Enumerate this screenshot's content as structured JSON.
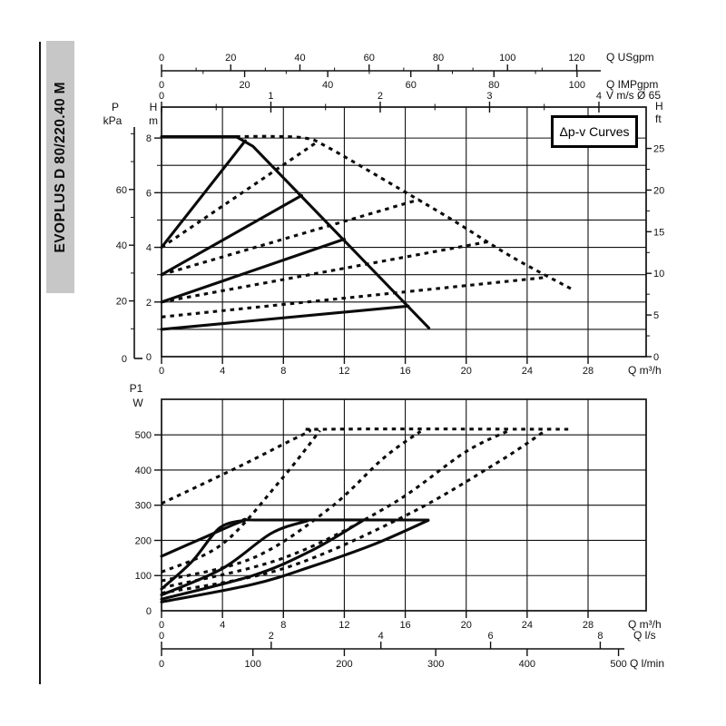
{
  "sidebar": {
    "model": "EVOPLUS D 80/220.40 M"
  },
  "annotation_box": {
    "label": "Δp-v Curves"
  },
  "colors": {
    "curve": "#0b0b0b",
    "grid": "#2e2e2e",
    "sidebar_bar": "#c7c7c7"
  },
  "chart_data": [
    {
      "id": "head_flow",
      "type": "line",
      "title": "Δp-v Curves",
      "legend_position": "top-right box",
      "grid": true,
      "axes": {
        "x_bottom": {
          "unit": "Q m³/h",
          "values": [
            0,
            4,
            8,
            12,
            16,
            20,
            24,
            28
          ],
          "range": [
            0,
            31.8
          ]
        },
        "y_left_primary": {
          "name_lines": [
            "H",
            "m"
          ],
          "labeled": [
            2,
            4,
            6,
            8
          ],
          "zero": 0,
          "minor": [
            1,
            3,
            5,
            7
          ],
          "range": [
            0,
            9.1
          ]
        },
        "y_left_secondary": {
          "name_lines": [
            "P",
            "kPa"
          ],
          "labeled": [
            20,
            40,
            60
          ],
          "zero": 0,
          "minor": [
            10,
            30,
            50,
            70,
            80
          ],
          "m_per_unit": 0.10197
        },
        "y_right": {
          "name_lines": [
            "H",
            "ft"
          ],
          "labeled": [
            5,
            10,
            15,
            20,
            25
          ],
          "zero": 0,
          "minor": [
            2.5,
            7.5,
            12.5,
            17.5,
            22.5
          ],
          "m_per_unit": 0.3048
        },
        "x_top": [
          {
            "unit": "Q USgpm",
            "values": [
              0,
              20,
              40,
              60,
              80,
              100,
              120
            ],
            "minor": [
              10,
              30,
              50,
              70,
              90,
              110
            ],
            "m3h_per_unit": 0.22712
          },
          {
            "unit": "Q IMPgpm",
            "values": [
              0,
              20,
              40,
              60,
              80,
              100
            ],
            "minor": [
              10,
              30,
              50,
              70,
              90
            ],
            "m3h_per_unit": 0.27276
          },
          {
            "unit": "V m/s Ø 65",
            "values": [
              0,
              1,
              2,
              3,
              4
            ],
            "minor": [
              0.5,
              1.5,
              2.5,
              3.5
            ],
            "m3h_per_unit": 7.178
          }
        ]
      },
      "series": [
        {
          "name": "max-speed-single",
          "style": "solid",
          "smooth": false,
          "points": [
            [
              0,
              8.05
            ],
            [
              4.9,
              8.05
            ],
            [
              6.0,
              7.7
            ],
            [
              17.55,
              1.05
            ]
          ]
        },
        {
          "name": "dpv-8m-single",
          "style": "solid",
          "smooth": false,
          "points": [
            [
              0,
              4.0
            ],
            [
              5.5,
              7.9
            ]
          ]
        },
        {
          "name": "dpv-6m-single",
          "style": "solid",
          "smooth": false,
          "points": [
            [
              0,
              3.0
            ],
            [
              9.2,
              5.9
            ]
          ]
        },
        {
          "name": "dpv-4m-single",
          "style": "solid",
          "smooth": false,
          "points": [
            [
              0,
              2.0
            ],
            [
              12.0,
              4.3
            ]
          ]
        },
        {
          "name": "dpv-2m-single",
          "style": "solid",
          "smooth": false,
          "points": [
            [
              0,
              1.0
            ],
            [
              16.2,
              1.85
            ]
          ]
        },
        {
          "name": "max-speed-parallel",
          "style": "dotted",
          "smooth": true,
          "points": [
            [
              4.9,
              8.05
            ],
            [
              7.2,
              8.06
            ],
            [
              9.4,
              8.0
            ],
            [
              10.8,
              7.7
            ],
            [
              15.6,
              6.15
            ],
            [
              19.1,
              5.0
            ],
            [
              23.0,
              3.65
            ],
            [
              27.0,
              2.45
            ]
          ]
        },
        {
          "name": "dpv-8m-parallel",
          "style": "dotted",
          "smooth": false,
          "points": [
            [
              0,
              4.0
            ],
            [
              10.2,
              7.85
            ]
          ]
        },
        {
          "name": "dpv-6m-parallel",
          "style": "dotted",
          "smooth": false,
          "points": [
            [
              0,
              3.0
            ],
            [
              16.9,
              5.75
            ]
          ]
        },
        {
          "name": "dpv-4m-parallel",
          "style": "dotted",
          "smooth": false,
          "points": [
            [
              0,
              2.0
            ],
            [
              21.4,
              4.2
            ]
          ]
        },
        {
          "name": "dpv-3m-parallel",
          "style": "dotted",
          "smooth": false,
          "points": [
            [
              0,
              1.45
            ],
            [
              25.2,
              2.9
            ]
          ]
        }
      ]
    },
    {
      "id": "power_flow",
      "type": "line",
      "grid": true,
      "axes": {
        "y_left": {
          "name_lines": [
            "P1",
            "W"
          ],
          "labeled": [
            100,
            200,
            300,
            400,
            500
          ],
          "zero": 0,
          "range": [
            0,
            600
          ]
        },
        "x_bottom": {
          "unit": "Q m³/h",
          "values": [
            0,
            4,
            8,
            12,
            16,
            20,
            24,
            28
          ],
          "range": [
            0,
            31.8
          ]
        },
        "x_extra": [
          {
            "unit": "Q l/s",
            "values": [
              0,
              2,
              4,
              6,
              8
            ],
            "m3h_per_unit": 3.6
          },
          {
            "unit": "Q l/min",
            "values": [
              0,
              100,
              200,
              300,
              400,
              500
            ],
            "m3h_per_unit": 0.06
          }
        ]
      },
      "series": [
        {
          "name": "power-max-single",
          "style": "solid",
          "smooth": true,
          "points": [
            [
              0,
              155
            ],
            [
              3,
              212
            ],
            [
              5.4,
              256
            ],
            [
              6.5,
              258
            ],
            [
              17.5,
              258
            ]
          ]
        },
        {
          "name": "power-8m-single",
          "style": "solid",
          "smooth": true,
          "points": [
            [
              0,
              62
            ],
            [
              2,
              140
            ],
            [
              3.8,
              235
            ],
            [
              5.4,
              257
            ]
          ]
        },
        {
          "name": "power-6m-single",
          "style": "solid",
          "smooth": true,
          "points": [
            [
              0,
              45
            ],
            [
              4,
              120
            ],
            [
              7.2,
              220
            ],
            [
              9.6,
              256
            ]
          ]
        },
        {
          "name": "power-4m-single",
          "style": "solid",
          "smooth": true,
          "points": [
            [
              0,
              33
            ],
            [
              6,
              100
            ],
            [
              9.8,
              170
            ],
            [
              13.2,
              256
            ]
          ]
        },
        {
          "name": "power-2m-single",
          "style": "solid",
          "smooth": true,
          "points": [
            [
              0,
              25
            ],
            [
              6,
              75
            ],
            [
              9.8,
              125
            ],
            [
              14,
              190
            ],
            [
              17.5,
              257
            ]
          ]
        },
        {
          "name": "power-max-parallel",
          "style": "dotted",
          "smooth": true,
          "points": [
            [
              0,
              305
            ],
            [
              5,
              408
            ],
            [
              9.5,
              505
            ],
            [
              10.8,
              516
            ],
            [
              26.7,
              516
            ]
          ]
        },
        {
          "name": "power-8m-parallel",
          "style": "dotted",
          "smooth": true,
          "points": [
            [
              0,
              110
            ],
            [
              4,
              190
            ],
            [
              7.8,
              370
            ],
            [
              10.4,
              512
            ]
          ]
        },
        {
          "name": "power-6m-parallel",
          "style": "dotted",
          "smooth": true,
          "points": [
            [
              0,
              85
            ],
            [
              6,
              150
            ],
            [
              11,
              290
            ],
            [
              14.6,
              435
            ],
            [
              17,
              510
            ]
          ]
        },
        {
          "name": "power-4m-parallel",
          "style": "dotted",
          "smooth": true,
          "points": [
            [
              0,
              65
            ],
            [
              8,
              150
            ],
            [
              15,
              300
            ],
            [
              19.9,
              450
            ],
            [
              22.8,
              512
            ]
          ]
        },
        {
          "name": "power-3m-parallel",
          "style": "dotted",
          "smooth": true,
          "points": [
            [
              0,
              50
            ],
            [
              8,
              120
            ],
            [
              16,
              270
            ],
            [
              22,
              420
            ],
            [
              25.2,
              512
            ]
          ]
        }
      ]
    }
  ]
}
